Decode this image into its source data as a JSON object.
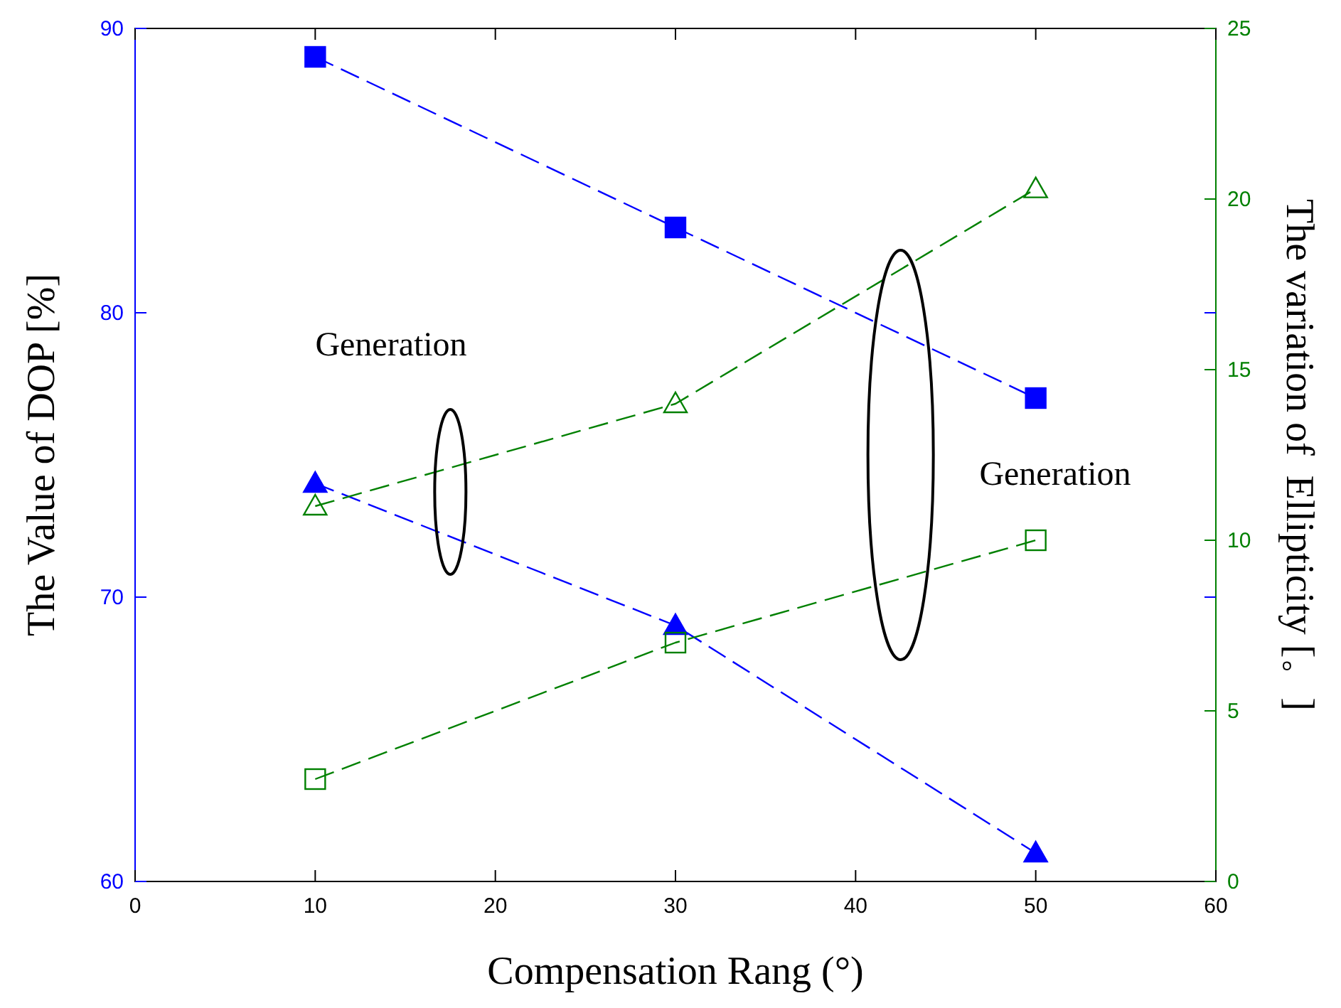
{
  "chart_data": {
    "type": "line",
    "xlabel": "Compensation Rang (°)",
    "ylabel": "The Value of DOP [%]",
    "y2label": "The variation of  Ellipticity [。]",
    "x": [
      10,
      30,
      50
    ],
    "series": [
      {
        "color": "#0000ff",
        "values": [
          89,
          83,
          77
        ],
        "marker": "square"
      },
      {
        "color": "#0000ff",
        "values": [
          74,
          69,
          61
        ],
        "marker": "triangle"
      },
      {
        "color": "#008000",
        "values": [
          11,
          14,
          20.3
        ],
        "marker": "triangle",
        "axis": "y2"
      },
      {
        "color": "#008000",
        "values": [
          3,
          7,
          10
        ],
        "marker": "square",
        "axis": "y2"
      }
    ],
    "xlim": [
      0,
      60
    ],
    "xticks": [
      0,
      10,
      20,
      30,
      40,
      50,
      60
    ],
    "ylim": [
      60,
      90
    ],
    "yticks": [
      60,
      70,
      80,
      90
    ],
    "y2lim": [
      0,
      25
    ],
    "y2ticks": [
      0,
      5,
      10,
      15,
      20,
      25
    ],
    "line_style": "dashed",
    "grid": false,
    "annotations": [
      "Generation",
      "Generation"
    ]
  }
}
